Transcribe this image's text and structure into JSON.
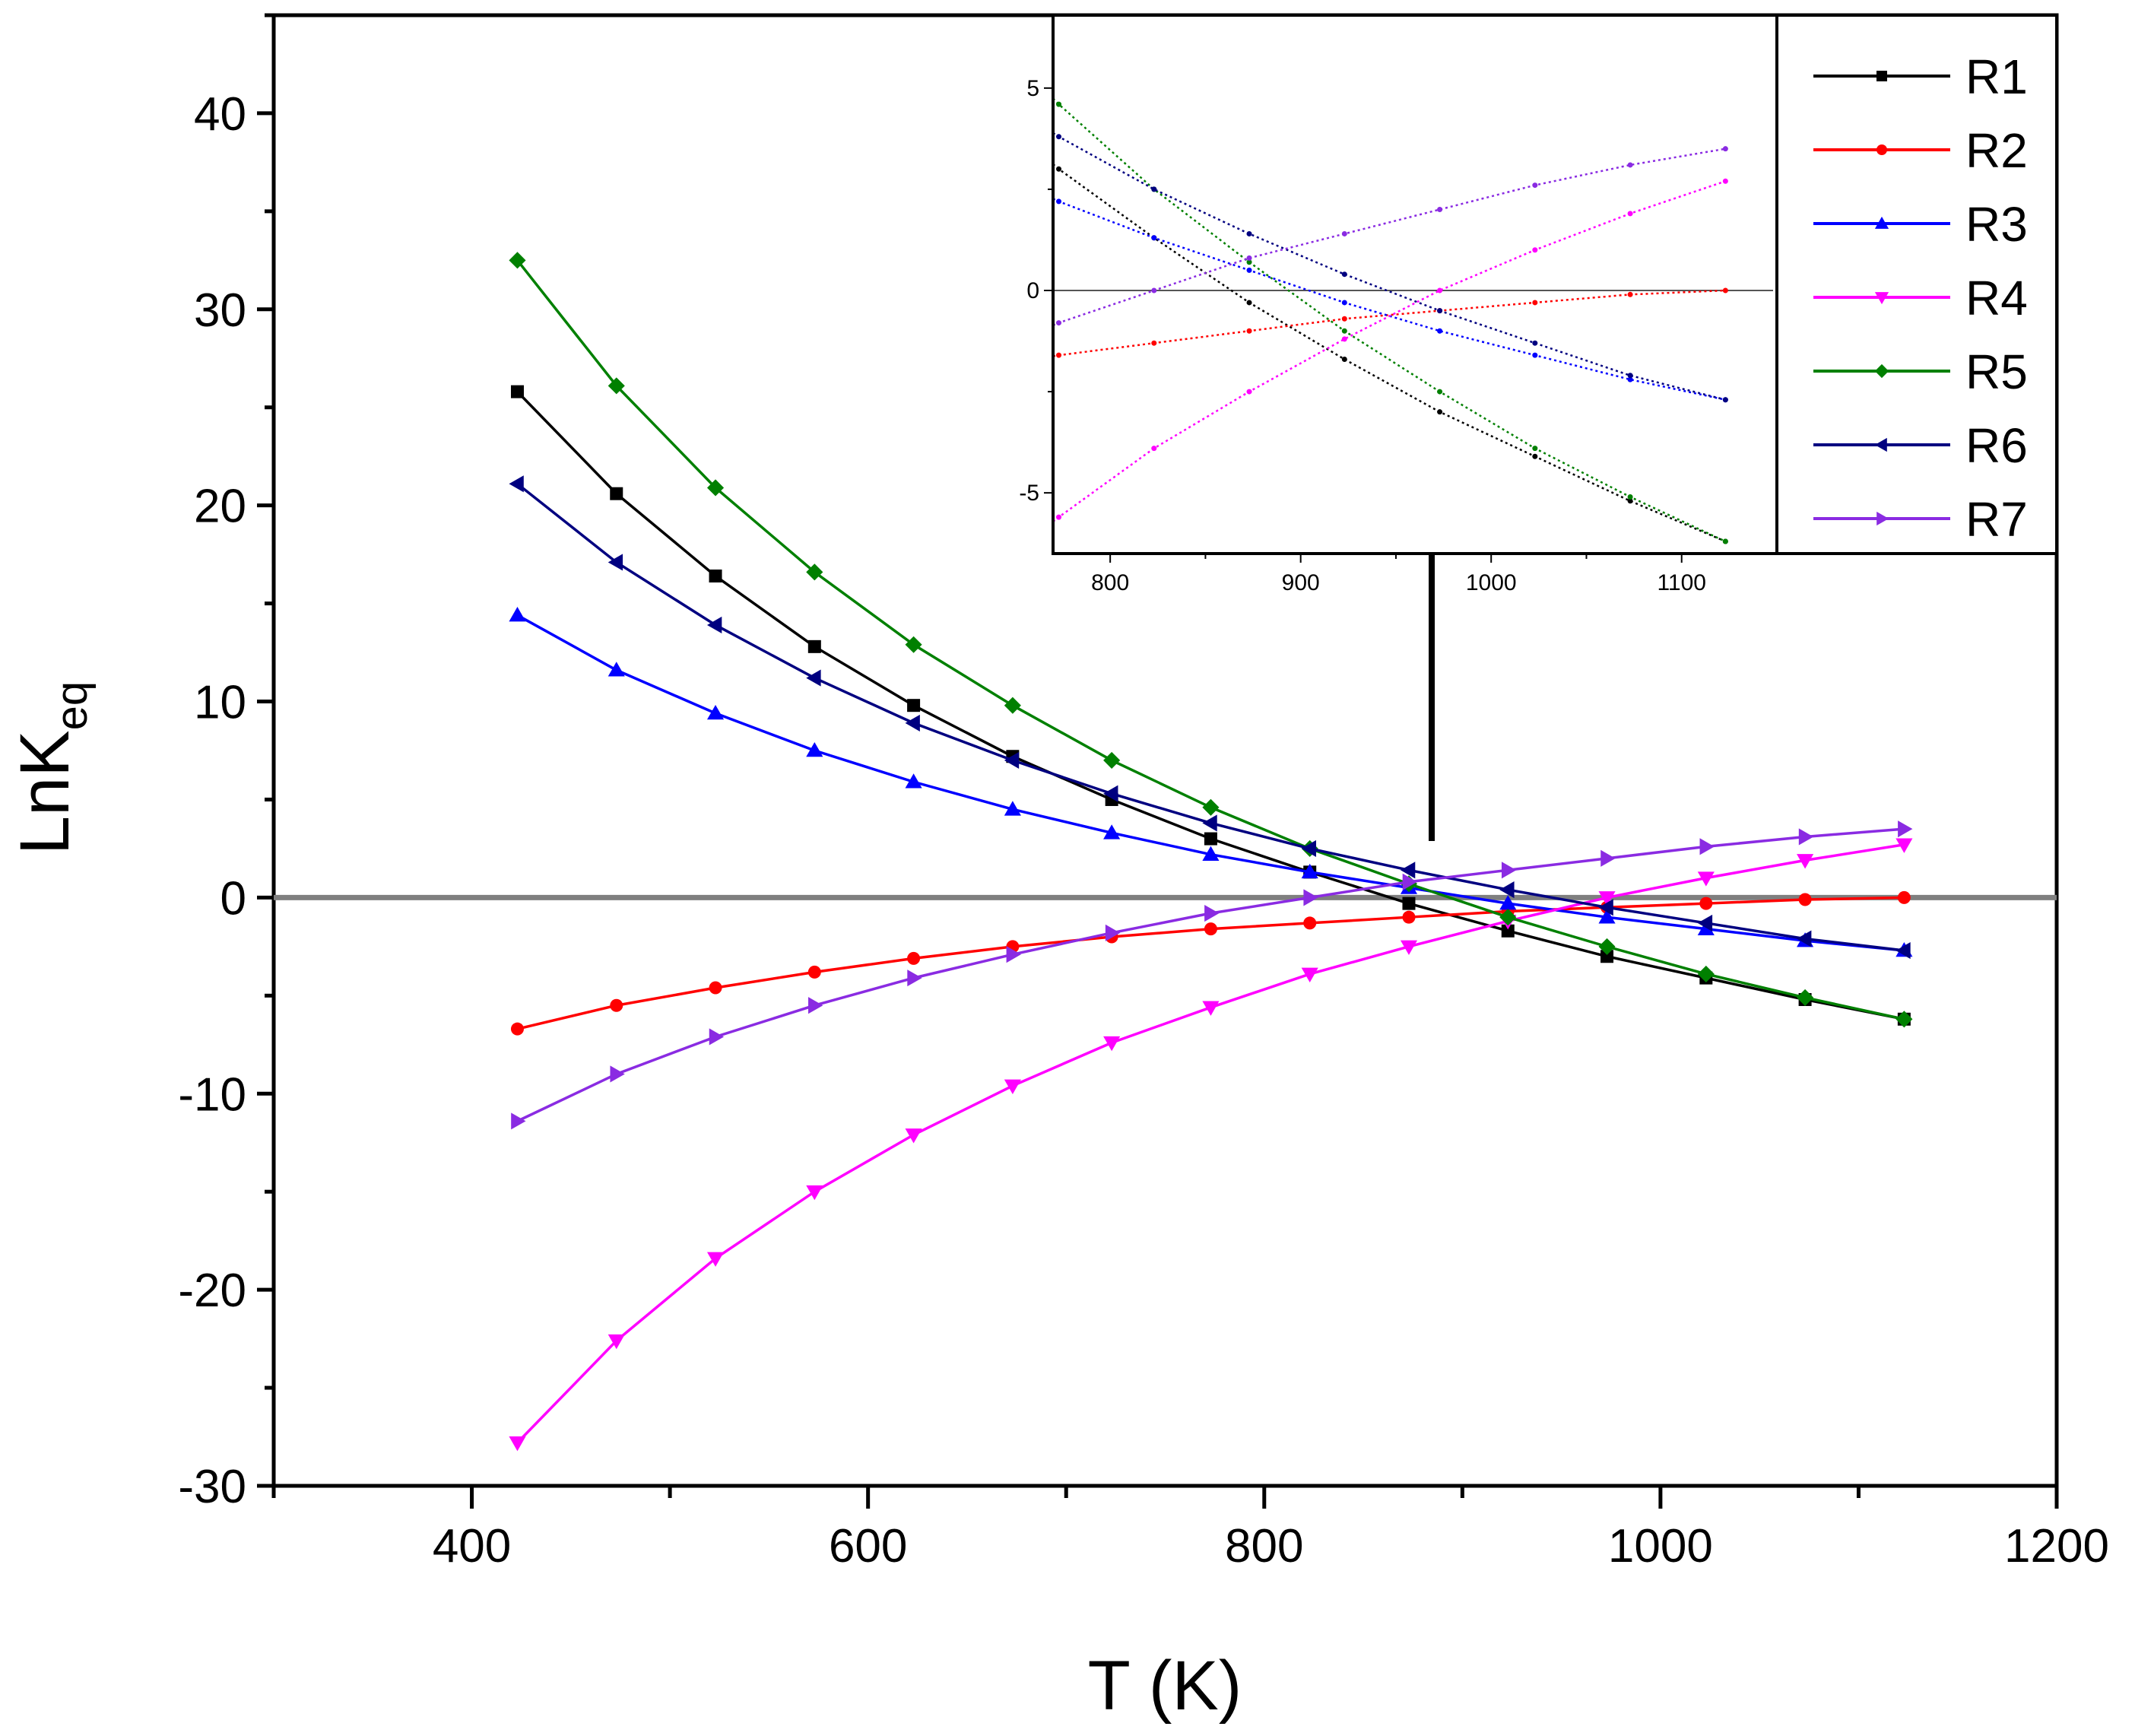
{
  "chart_data": [
    {
      "type": "line",
      "role": "main",
      "xlabel": "T (K)",
      "ylabel": "LnK",
      "ylabel_subscript": "eq",
      "xlim": [
        300,
        1200
      ],
      "ylim": [
        -30,
        45
      ],
      "xticks": [
        400,
        600,
        800,
        1000,
        1200
      ],
      "yticks": [
        -30,
        -20,
        -10,
        0,
        10,
        20,
        30,
        40
      ],
      "xtick_labels": [
        "400",
        "600",
        "800",
        "1000",
        "1200"
      ],
      "ytick_labels": [
        "-30",
        "-20",
        "-10",
        "0",
        "10",
        "20",
        "30",
        "40"
      ],
      "reference_line_y": 0,
      "x": [
        423,
        473,
        523,
        573,
        623,
        673,
        723,
        773,
        823,
        873,
        923,
        973,
        1023,
        1073,
        1123
      ],
      "series": [
        {
          "name": "R1",
          "color": "#000000",
          "marker": "square",
          "values": [
            25.8,
            20.6,
            16.4,
            12.8,
            9.8,
            7.2,
            5.0,
            3.0,
            1.3,
            -0.3,
            -1.7,
            -3.0,
            -4.1,
            -5.2,
            -6.2
          ]
        },
        {
          "name": "R2",
          "color": "#ff0000",
          "marker": "circle",
          "values": [
            -6.7,
            -5.5,
            -4.6,
            -3.8,
            -3.1,
            -2.5,
            -2.0,
            -1.6,
            -1.3,
            -1.0,
            -0.7,
            -0.5,
            -0.3,
            -0.1,
            0.0
          ]
        },
        {
          "name": "R3",
          "color": "#0000ff",
          "marker": "triangle-up",
          "values": [
            14.4,
            11.6,
            9.4,
            7.5,
            5.9,
            4.5,
            3.3,
            2.2,
            1.3,
            0.5,
            -0.3,
            -1.0,
            -1.6,
            -2.2,
            -2.7
          ]
        },
        {
          "name": "R4",
          "color": "#ff00ff",
          "marker": "triangle-down",
          "values": [
            -27.8,
            -22.6,
            -18.4,
            -15.0,
            -12.1,
            -9.6,
            -7.4,
            -5.6,
            -3.9,
            -2.5,
            -1.2,
            0.0,
            1.0,
            1.9,
            2.7
          ]
        },
        {
          "name": "R5",
          "color": "#008000",
          "marker": "diamond",
          "values": [
            32.5,
            26.1,
            20.9,
            16.6,
            12.9,
            9.8,
            7.0,
            4.6,
            2.5,
            0.7,
            -1.0,
            -2.5,
            -3.9,
            -5.1,
            -6.2
          ]
        },
        {
          "name": "R6",
          "color": "#000080",
          "marker": "triangle-left",
          "values": [
            21.1,
            17.1,
            13.9,
            11.2,
            8.9,
            7.0,
            5.3,
            3.8,
            2.5,
            1.4,
            0.4,
            -0.5,
            -1.3,
            -2.1,
            -2.7
          ]
        },
        {
          "name": "R7",
          "color": "#8a2be2",
          "marker": "triangle-right",
          "values": [
            -11.4,
            -9.0,
            -7.1,
            -5.5,
            -4.1,
            -2.9,
            -1.8,
            -0.8,
            0.0,
            0.8,
            1.4,
            2.0,
            2.6,
            3.1,
            3.5
          ]
        }
      ],
      "annotation": "upward arrow pointing to inset"
    },
    {
      "type": "line",
      "role": "inset",
      "xlim": [
        770,
        1150
      ],
      "ylim": [
        -6.5,
        6.8
      ],
      "xticks": [
        800,
        900,
        1000,
        1100
      ],
      "yticks": [
        -5,
        0,
        5
      ],
      "xtick_labels": [
        "800",
        "900",
        "1000",
        "1100"
      ],
      "ytick_labels": [
        "-5",
        "0",
        "5"
      ],
      "reference_line_y": 0,
      "line_style": "dotted",
      "x_range_shown": [
        770,
        1123
      ]
    }
  ],
  "legend": {
    "placement": "top-right",
    "entries": [
      "R1",
      "R2",
      "R3",
      "R4",
      "R5",
      "R6",
      "R7"
    ]
  }
}
